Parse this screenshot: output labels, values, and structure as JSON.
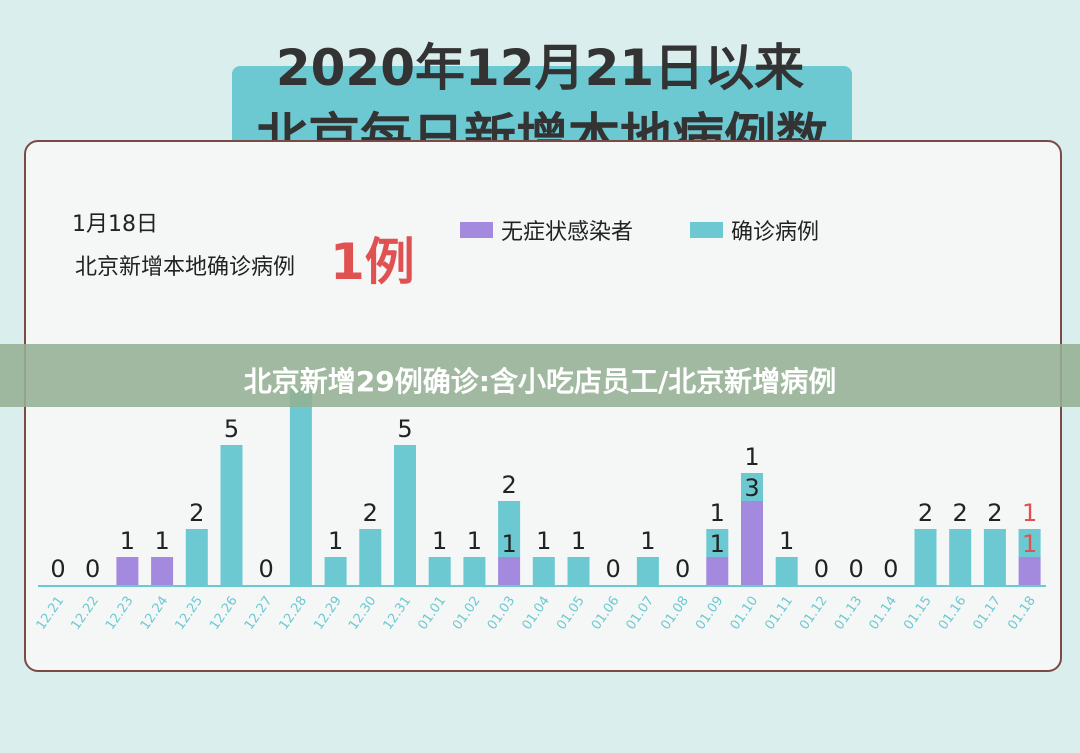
{
  "header": {
    "title_line1": "2020年12月21日以来",
    "title_line2": "北京每日新增本地病例数"
  },
  "summary": {
    "date": "1月18日",
    "description": "北京新增本地确诊病例",
    "count": "1例"
  },
  "legend": [
    {
      "label": "无症状感染者",
      "color": "#a38ade"
    },
    {
      "label": "确诊病例",
      "color": "#6cc9d2"
    }
  ],
  "overlay": {
    "text": "北京新增29例确诊:含小吃店员工/北京新增病例"
  },
  "chart_data": {
    "type": "bar",
    "stacked": true,
    "categories": [
      "12.21",
      "12.22",
      "12.23",
      "12.24",
      "12.25",
      "12.26",
      "12.27",
      "12.28",
      "12.29",
      "12.30",
      "12.31",
      "01.01",
      "01.02",
      "01.03",
      "01.04",
      "01.05",
      "01.06",
      "01.07",
      "01.08",
      "01.09",
      "01.10",
      "01.11",
      "01.12",
      "01.13",
      "01.14",
      "01.15",
      "01.16",
      "01.17",
      "01.18"
    ],
    "series": [
      {
        "name": "无症状感染者",
        "color": "#a38ade",
        "values": [
          0,
          0,
          1,
          1,
          0,
          0,
          0,
          0,
          0,
          0,
          0,
          0,
          0,
          1,
          0,
          0,
          0,
          0,
          0,
          1,
          3,
          0,
          0,
          0,
          0,
          0,
          0,
          0,
          1
        ]
      },
      {
        "name": "确诊病例",
        "color": "#6cc9d2",
        "values": [
          0,
          0,
          0,
          0,
          2,
          5,
          0,
          7,
          1,
          2,
          5,
          1,
          1,
          2,
          1,
          1,
          0,
          1,
          0,
          1,
          1,
          1,
          0,
          0,
          0,
          2,
          2,
          2,
          1
        ]
      }
    ],
    "labels": [
      {
        "category": "12.21",
        "text": "0"
      },
      {
        "category": "12.22",
        "text": "0"
      },
      {
        "category": "12.23",
        "text": "1"
      },
      {
        "category": "12.24",
        "text": "1"
      },
      {
        "category": "12.25",
        "text": "2"
      },
      {
        "category": "12.26",
        "text": "5"
      },
      {
        "category": "12.27",
        "text": "0"
      },
      {
        "category": "12.29",
        "text": "1"
      },
      {
        "category": "12.30",
        "text": "2"
      },
      {
        "category": "12.31",
        "text": "5"
      },
      {
        "category": "01.01",
        "text": "1"
      },
      {
        "category": "01.02",
        "text": "1"
      },
      {
        "category": "01.03",
        "text": "2"
      },
      {
        "category": "01.03",
        "text": "1",
        "segment": "inner"
      },
      {
        "category": "01.04",
        "text": "1"
      },
      {
        "category": "01.05",
        "text": "1"
      },
      {
        "category": "01.06",
        "text": "0"
      },
      {
        "category": "01.07",
        "text": "1"
      },
      {
        "category": "01.08",
        "text": "0"
      },
      {
        "category": "01.09",
        "text": "1"
      },
      {
        "category": "01.09",
        "text": "1",
        "segment": "inner"
      },
      {
        "category": "01.10",
        "text": "1"
      },
      {
        "category": "01.10",
        "text": "3",
        "segment": "inner"
      },
      {
        "category": "01.11",
        "text": "1"
      },
      {
        "category": "01.12",
        "text": "0"
      },
      {
        "category": "01.13",
        "text": "0"
      },
      {
        "category": "01.14",
        "text": "0"
      },
      {
        "category": "01.15",
        "text": "2"
      },
      {
        "category": "01.16",
        "text": "2"
      },
      {
        "category": "01.17",
        "text": "2"
      },
      {
        "category": "01.18",
        "text": "1",
        "highlight": true
      },
      {
        "category": "01.18",
        "text": "1",
        "segment": "inner",
        "highlight": true
      }
    ],
    "highlight_color": "#e05252",
    "axis_color": "#6cc9d2",
    "grid": false
  }
}
